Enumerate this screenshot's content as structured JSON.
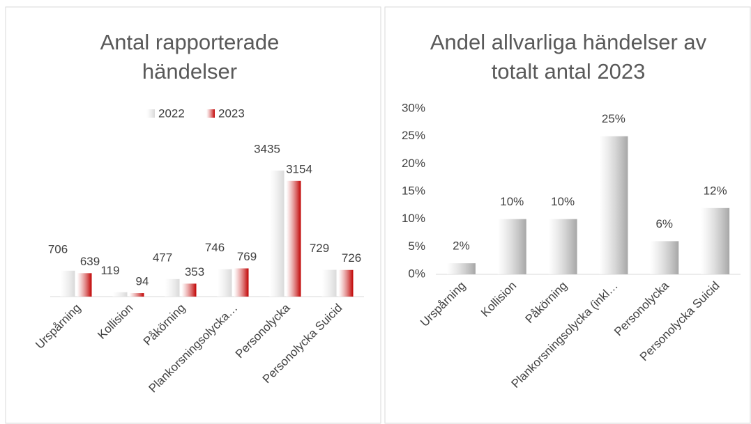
{
  "chart_data": [
    {
      "type": "bar",
      "title": "Antal rapporterade händelser",
      "categories": [
        "Urspårning",
        "Kollision",
        "Påkörning",
        "Plankorsningsolycka…",
        "Personolycka",
        "Personolycka Suicid"
      ],
      "series": [
        {
          "name": "2022",
          "color": "#d9d9d9",
          "values": [
            706,
            119,
            477,
            746,
            3435,
            729
          ]
        },
        {
          "name": "2023",
          "color": "#c00000",
          "values": [
            639,
            94,
            353,
            769,
            3154,
            726
          ]
        }
      ],
      "legend": "top"
    },
    {
      "type": "bar",
      "title": "Andel allvarliga händelser av totalt antal 2023",
      "categories": [
        "Urspårning",
        "Kollision",
        "Påkörning",
        "Plankorsningsolycka (inkl…",
        "Personolycka",
        "Personolycka Suicid"
      ],
      "values": [
        2,
        10,
        10,
        25,
        6,
        12
      ],
      "value_labels": [
        "2%",
        "10%",
        "10%",
        "25%",
        "6%",
        "12%"
      ],
      "color": "#a6a6a6",
      "ylim": [
        0,
        30
      ],
      "yticks": [
        {
          "value": 0,
          "label": "0%"
        },
        {
          "value": 5,
          "label": "5%"
        },
        {
          "value": 10,
          "label": "10%"
        },
        {
          "value": 15,
          "label": "15%"
        },
        {
          "value": 20,
          "label": "20%"
        },
        {
          "value": 25,
          "label": "25%"
        },
        {
          "value": 30,
          "label": "30%"
        }
      ]
    }
  ]
}
